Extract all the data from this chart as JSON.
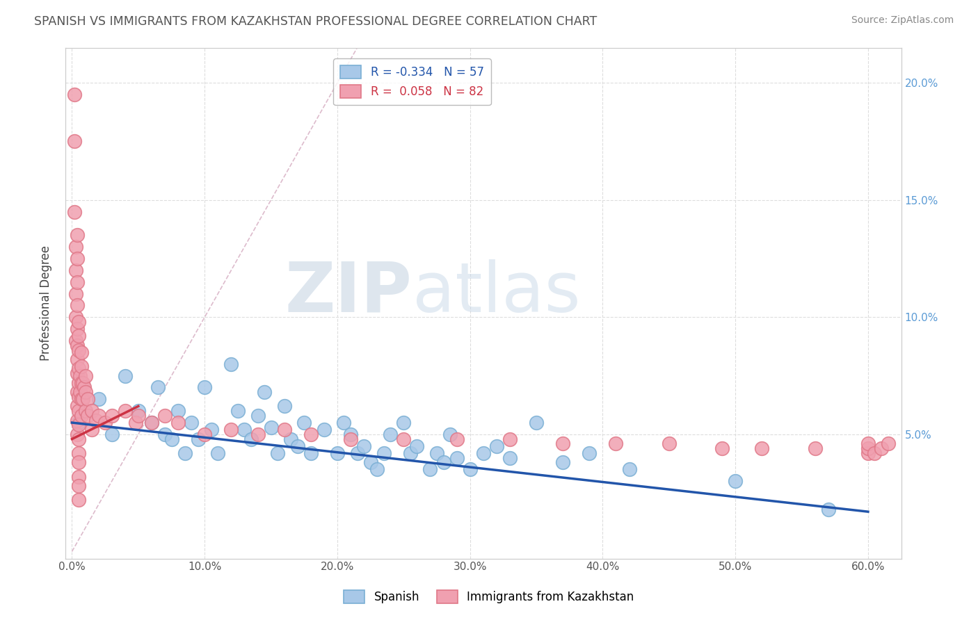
{
  "title": "SPANISH VS IMMIGRANTS FROM KAZAKHSTAN PROFESSIONAL DEGREE CORRELATION CHART",
  "source": "Source: ZipAtlas.com",
  "ylabel": "Professional Degree",
  "watermark_zip": "ZIP",
  "watermark_atlas": "atlas",
  "legend_r1": "R = -0.334",
  "legend_n1": "N = 57",
  "legend_r2": "R =  0.058",
  "legend_n2": "N = 82",
  "bottom_legend": [
    "Spanish",
    "Immigrants from Kazakhstan"
  ],
  "blue_color": "#a8c8e8",
  "pink_color": "#f0a0b0",
  "blue_edge_color": "#7aafd4",
  "pink_edge_color": "#e07888",
  "blue_line_color": "#2255aa",
  "pink_line_color": "#cc3344",
  "diag_color": "#ddbbcc",
  "xlim": [
    -0.005,
    0.625
  ],
  "ylim": [
    -0.003,
    0.215
  ],
  "xticks": [
    0.0,
    0.1,
    0.2,
    0.3,
    0.4,
    0.5,
    0.6
  ],
  "xtick_labels": [
    "0.0%",
    "10.0%",
    "20.0%",
    "30.0%",
    "40.0%",
    "50.0%",
    "60.0%"
  ],
  "yticks_left": [
    0.05,
    0.1,
    0.15,
    0.2
  ],
  "ytick_labels_left": [
    "5.0%",
    "10.0%",
    "15.0%",
    "20.0%"
  ],
  "yticks_right": [
    0.05,
    0.1,
    0.15,
    0.2
  ],
  "ytick_labels_right": [
    "5.0%",
    "10.0%",
    "15.0%",
    "20.0%"
  ],
  "blue_scatter_x": [
    0.005,
    0.02,
    0.03,
    0.04,
    0.05,
    0.06,
    0.065,
    0.07,
    0.075,
    0.08,
    0.085,
    0.09,
    0.095,
    0.1,
    0.105,
    0.11,
    0.12,
    0.125,
    0.13,
    0.135,
    0.14,
    0.145,
    0.15,
    0.155,
    0.16,
    0.165,
    0.17,
    0.175,
    0.18,
    0.19,
    0.2,
    0.205,
    0.21,
    0.215,
    0.22,
    0.225,
    0.23,
    0.235,
    0.24,
    0.25,
    0.255,
    0.26,
    0.27,
    0.275,
    0.28,
    0.285,
    0.29,
    0.3,
    0.31,
    0.32,
    0.33,
    0.35,
    0.37,
    0.39,
    0.42,
    0.5,
    0.57
  ],
  "blue_scatter_y": [
    0.055,
    0.065,
    0.05,
    0.075,
    0.06,
    0.055,
    0.07,
    0.05,
    0.048,
    0.06,
    0.042,
    0.055,
    0.048,
    0.07,
    0.052,
    0.042,
    0.08,
    0.06,
    0.052,
    0.048,
    0.058,
    0.068,
    0.053,
    0.042,
    0.062,
    0.048,
    0.045,
    0.055,
    0.042,
    0.052,
    0.042,
    0.055,
    0.05,
    0.042,
    0.045,
    0.038,
    0.035,
    0.042,
    0.05,
    0.055,
    0.042,
    0.045,
    0.035,
    0.042,
    0.038,
    0.05,
    0.04,
    0.035,
    0.042,
    0.045,
    0.04,
    0.055,
    0.038,
    0.042,
    0.035,
    0.03,
    0.018
  ],
  "pink_scatter_x": [
    0.002,
    0.002,
    0.002,
    0.003,
    0.003,
    0.003,
    0.003,
    0.003,
    0.004,
    0.004,
    0.004,
    0.004,
    0.004,
    0.004,
    0.004,
    0.004,
    0.004,
    0.004,
    0.004,
    0.004,
    0.005,
    0.005,
    0.005,
    0.005,
    0.005,
    0.005,
    0.005,
    0.005,
    0.005,
    0.005,
    0.005,
    0.005,
    0.005,
    0.005,
    0.006,
    0.006,
    0.007,
    0.007,
    0.007,
    0.007,
    0.007,
    0.008,
    0.008,
    0.009,
    0.01,
    0.01,
    0.01,
    0.012,
    0.012,
    0.015,
    0.015,
    0.018,
    0.02,
    0.025,
    0.03,
    0.04,
    0.048,
    0.05,
    0.06,
    0.07,
    0.08,
    0.1,
    0.12,
    0.14,
    0.16,
    0.18,
    0.21,
    0.25,
    0.29,
    0.33,
    0.37,
    0.41,
    0.45,
    0.49,
    0.52,
    0.56,
    0.6,
    0.6,
    0.6,
    0.605,
    0.61,
    0.615
  ],
  "pink_scatter_y": [
    0.195,
    0.175,
    0.145,
    0.13,
    0.12,
    0.11,
    0.1,
    0.09,
    0.135,
    0.125,
    0.115,
    0.105,
    0.095,
    0.088,
    0.082,
    0.076,
    0.068,
    0.062,
    0.056,
    0.05,
    0.098,
    0.092,
    0.086,
    0.078,
    0.072,
    0.066,
    0.06,
    0.054,
    0.048,
    0.042,
    0.038,
    0.032,
    0.028,
    0.022,
    0.075,
    0.068,
    0.085,
    0.079,
    0.072,
    0.065,
    0.058,
    0.072,
    0.065,
    0.07,
    0.075,
    0.068,
    0.06,
    0.065,
    0.058,
    0.06,
    0.052,
    0.056,
    0.058,
    0.055,
    0.058,
    0.06,
    0.055,
    0.058,
    0.055,
    0.058,
    0.055,
    0.05,
    0.052,
    0.05,
    0.052,
    0.05,
    0.048,
    0.048,
    0.048,
    0.048,
    0.046,
    0.046,
    0.046,
    0.044,
    0.044,
    0.044,
    0.042,
    0.044,
    0.046,
    0.042,
    0.044,
    0.046
  ],
  "blue_line_x": [
    0.0,
    0.6
  ],
  "blue_line_y_start": 0.055,
  "blue_line_y_end": 0.017,
  "pink_line_x": [
    0.0,
    0.05
  ],
  "pink_line_y_start": 0.048,
  "pink_line_y_end": 0.062,
  "diag_line_x": [
    0.0,
    0.215
  ],
  "diag_line_y": [
    0.0,
    0.215
  ]
}
